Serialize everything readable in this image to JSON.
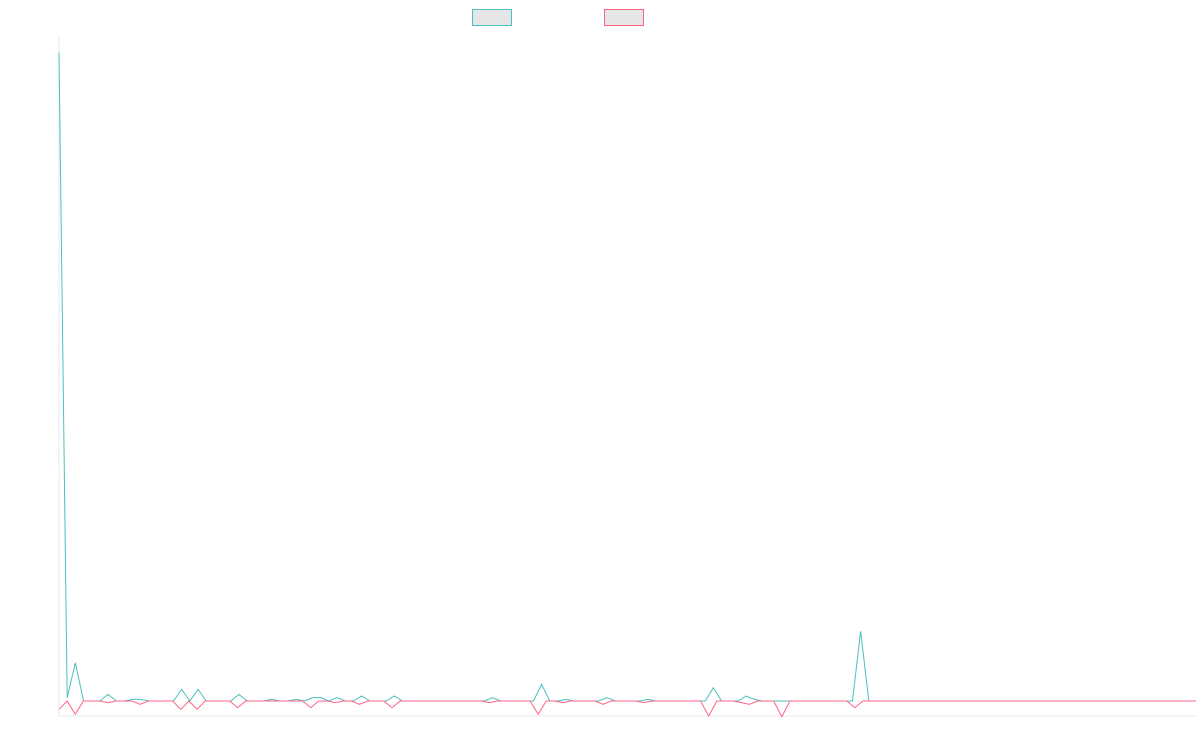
{
  "chart_data": {
    "type": "line",
    "title": "",
    "xlabel": "",
    "ylabel": "",
    "legend_position": "top-center",
    "grid": false,
    "ylim": [
      -2,
      40
    ],
    "series": [
      {
        "color": "#4bc0c0",
        "values": [
          39,
          0.2,
          2.3,
          0,
          0,
          0,
          0.4,
          0,
          0,
          0.1,
          0.1,
          0,
          0,
          0,
          0,
          0.7,
          0,
          0.7,
          0,
          0,
          0,
          0,
          0.4,
          0,
          0,
          0,
          0.1,
          0,
          0,
          0.1,
          0,
          0.2,
          0.2,
          0,
          0.2,
          0,
          0,
          0.3,
          0,
          0,
          0,
          0.3,
          0,
          0,
          0,
          0,
          0,
          0,
          0,
          0,
          0,
          0,
          0,
          0.2,
          0,
          0,
          0,
          0,
          0,
          1.0,
          0,
          0,
          0.1,
          0,
          0,
          0,
          0,
          0.2,
          0,
          0,
          0,
          0,
          0.1,
          0,
          0,
          0,
          0,
          0,
          0,
          0,
          0.8,
          0,
          0,
          0,
          0.3,
          0.1,
          0,
          0,
          0,
          0,
          0,
          0,
          0,
          0,
          0,
          0,
          0,
          0,
          4.2,
          0,
          0,
          0,
          0,
          0,
          0,
          0,
          0,
          0,
          0,
          0,
          0,
          0,
          0,
          0,
          0,
          0,
          0,
          0,
          0,
          0,
          0,
          0,
          0,
          0,
          0,
          0,
          0,
          0,
          0,
          0,
          0,
          0,
          0,
          0,
          0,
          0,
          0,
          0,
          0,
          0
        ]
      },
      {
        "color": "#ff6384",
        "values": [
          -0.5,
          0,
          -0.8,
          0,
          0,
          0,
          -0.1,
          0,
          0,
          0,
          -0.2,
          0,
          0,
          0,
          0,
          -0.5,
          0,
          -0.5,
          0,
          0,
          0,
          0,
          -0.4,
          0,
          0,
          0,
          0,
          0,
          0,
          0,
          0,
          -0.4,
          0,
          0,
          -0.1,
          0,
          0,
          -0.2,
          0,
          0,
          0,
          -0.4,
          0,
          0,
          0,
          0,
          0,
          0,
          0,
          0,
          0,
          0,
          0,
          -0.1,
          0,
          0,
          0,
          0,
          0,
          -0.8,
          0,
          0,
          -0.1,
          0,
          0,
          0,
          0,
          -0.2,
          0,
          0,
          0,
          0,
          -0.1,
          0,
          0,
          0,
          0,
          0,
          0,
          0,
          -0.9,
          0,
          0,
          0,
          -0.1,
          -0.2,
          0,
          0,
          0,
          -0.95,
          0,
          0,
          0,
          0,
          0,
          0,
          0,
          0,
          -0.4,
          0,
          0,
          0,
          0,
          0,
          0,
          0,
          0,
          0,
          0,
          0,
          0,
          0,
          0,
          0,
          0,
          0,
          0,
          0,
          0,
          0,
          0,
          0,
          0,
          0,
          0,
          0,
          0,
          0,
          0,
          0,
          0,
          0,
          0,
          0,
          0,
          0,
          0,
          0,
          0,
          0,
          0
        ]
      }
    ]
  }
}
